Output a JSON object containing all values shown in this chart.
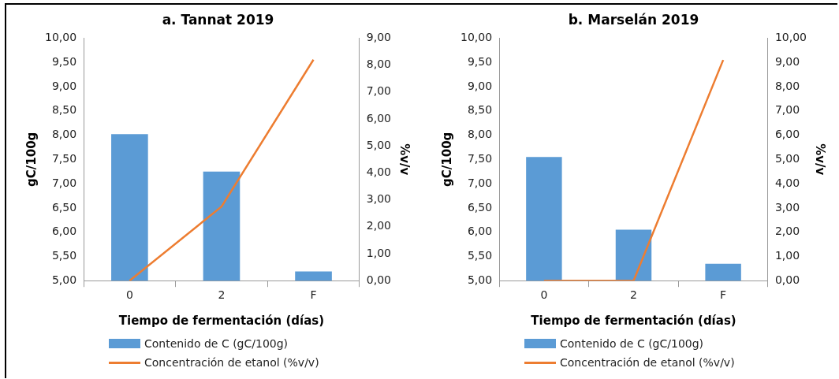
{
  "chart_data": [
    {
      "type": "bar",
      "title": "a. Tannat 2019",
      "xlabel": "Tiempo de fermentación (días)",
      "ylabel": "gC/100g",
      "y2label": "%v/v",
      "categories": [
        "0",
        "2",
        "F"
      ],
      "series": [
        {
          "name": "Contenido de C (gC/100g)",
          "color": "#5b9bd5",
          "values": [
            8.02,
            7.25,
            5.19
          ]
        },
        {
          "name": "Concentración de etanol (%v/v)",
          "type": "line",
          "axis": "y2",
          "color": "#ed7d31",
          "values": [
            0,
            2.75,
            8.2
          ]
        }
      ],
      "ylim": [
        5,
        10
      ],
      "yticks": [
        {
          "value": 5,
          "label": "5,00"
        },
        {
          "value": 5.5,
          "label": "5,50"
        },
        {
          "value": 6,
          "label": "6,00"
        },
        {
          "value": 6.5,
          "label": "6,50"
        },
        {
          "value": 7,
          "label": "7,00"
        },
        {
          "value": 7.5,
          "label": "7,50"
        },
        {
          "value": 8,
          "label": "8,00"
        },
        {
          "value": 8.5,
          "label": "8,50"
        },
        {
          "value": 9,
          "label": "9,00"
        },
        {
          "value": 9.5,
          "label": "9,50"
        },
        {
          "value": 10,
          "label": "10,00"
        }
      ],
      "y2lim": [
        0,
        9
      ],
      "y2ticks": [
        {
          "value": 0,
          "label": "0,00"
        },
        {
          "value": 1,
          "label": "1,00"
        },
        {
          "value": 2,
          "label": "2,00"
        },
        {
          "value": 3,
          "label": "3,00"
        },
        {
          "value": 4,
          "label": "4,00"
        },
        {
          "value": 5,
          "label": "5,00"
        },
        {
          "value": 6,
          "label": "6,00"
        },
        {
          "value": 7,
          "label": "7,00"
        },
        {
          "value": 8,
          "label": "8,00"
        },
        {
          "value": 9,
          "label": "9,00"
        }
      ],
      "grid": false,
      "legend": "bottom",
      "marker": "none"
    },
    {
      "type": "bar",
      "title": "b. Marselán 2019",
      "xlabel": "Tiempo de fermentación (días)",
      "ylabel": "gC/100g",
      "y2label": "%v/v",
      "categories": [
        "0",
        "2",
        "F"
      ],
      "series": [
        {
          "name": "Contenido de C (gC/100g)",
          "color": "#5b9bd5",
          "values": [
            7.55,
            6.05,
            5.35
          ]
        },
        {
          "name": "Concentración de etanol (%v/v)",
          "type": "line",
          "axis": "y2",
          "color": "#ed7d31",
          "values": [
            0,
            0,
            9.1
          ]
        }
      ],
      "ylim": [
        5,
        10
      ],
      "yticks": [
        {
          "value": 5,
          "label": "5,00"
        },
        {
          "value": 5.5,
          "label": "5,50"
        },
        {
          "value": 6,
          "label": "6,00"
        },
        {
          "value": 6.5,
          "label": "6,50"
        },
        {
          "value": 7,
          "label": "7,00"
        },
        {
          "value": 7.5,
          "label": "7,50"
        },
        {
          "value": 8,
          "label": "8,00"
        },
        {
          "value": 8.5,
          "label": "8,50"
        },
        {
          "value": 9,
          "label": "9,00"
        },
        {
          "value": 9.5,
          "label": "9,50"
        },
        {
          "value": 10,
          "label": "10,00"
        }
      ],
      "y2lim": [
        0,
        10
      ],
      "y2ticks": [
        {
          "value": 0,
          "label": "0,00"
        },
        {
          "value": 1,
          "label": "1,00"
        },
        {
          "value": 2,
          "label": "2,00"
        },
        {
          "value": 3,
          "label": "3,00"
        },
        {
          "value": 4,
          "label": "4,00"
        },
        {
          "value": 5,
          "label": "5,00"
        },
        {
          "value": 6,
          "label": "6,00"
        },
        {
          "value": 7,
          "label": "7,00"
        },
        {
          "value": 8,
          "label": "8,00"
        },
        {
          "value": 9,
          "label": "9,00"
        },
        {
          "value": 10,
          "label": "10,00"
        }
      ],
      "grid": false,
      "legend": "bottom",
      "marker": "none"
    }
  ]
}
